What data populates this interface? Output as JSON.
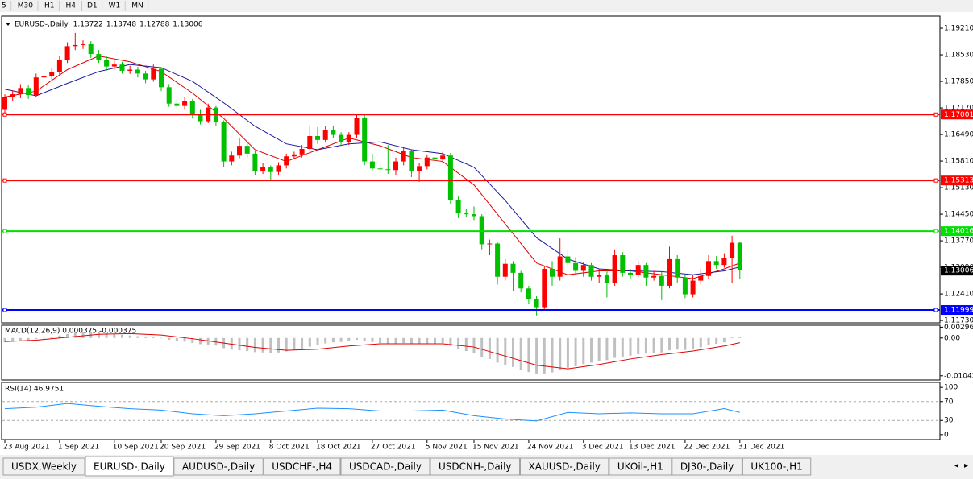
{
  "toolbar": {
    "timeframes": [
      "5",
      "M30",
      "H1",
      "H4",
      "D1",
      "W1",
      "MN"
    ]
  },
  "chart_data": [
    {
      "type": "candlestick",
      "title": "EURUSD-,Daily",
      "header_values": [
        1.13722,
        1.13748,
        1.12788,
        1.13006
      ],
      "categories": [
        "23 Aug 2021",
        null,
        null,
        null,
        null,
        null,
        null,
        "1 Sep 2021",
        null,
        null,
        null,
        null,
        null,
        null,
        "10 Sep 2021",
        null,
        null,
        null,
        null,
        null,
        "20 Sep 2021",
        null,
        null,
        null,
        null,
        null,
        null,
        "29 Sep 2021",
        null,
        null,
        null,
        null,
        null,
        null,
        "8 Oct 2021",
        null,
        null,
        null,
        null,
        null,
        "18 Oct 2021",
        null,
        null,
        null,
        null,
        null,
        null,
        "27 Oct 2021",
        null,
        null,
        null,
        null,
        null,
        null,
        "5 Nov 2021",
        null,
        null,
        null,
        null,
        null,
        "15 Nov 2021",
        null,
        null,
        null,
        null,
        null,
        null,
        "24 Nov 2021",
        null,
        null,
        null,
        null,
        null,
        null,
        "3 Dec 2021",
        null,
        null,
        null,
        null,
        null,
        "13 Dec 2021",
        null,
        null,
        null,
        null,
        null,
        null,
        "22 Dec 2021",
        null,
        null,
        null,
        null,
        null,
        null,
        "31 Dec 2021",
        null,
        null
      ],
      "candles": [
        [
          1.1712,
          1.1752,
          1.17,
          1.1745
        ],
        [
          1.1745,
          1.1762,
          1.1735,
          1.1752
        ],
        [
          1.1752,
          1.1778,
          1.1742,
          1.1768
        ],
        [
          1.1768,
          1.1775,
          1.174,
          1.175
        ],
        [
          1.175,
          1.1805,
          1.1745,
          1.1795
        ],
        [
          1.1795,
          1.1808,
          1.1785,
          1.1798
        ],
        [
          1.1798,
          1.182,
          1.179,
          1.1808
        ],
        [
          1.1808,
          1.185,
          1.18,
          1.184
        ],
        [
          1.184,
          1.1885,
          1.1832,
          1.1875
        ],
        [
          1.1875,
          1.1909,
          1.1865,
          1.1878
        ],
        [
          1.1878,
          1.189,
          1.1868,
          1.188
        ],
        [
          1.188,
          1.1888,
          1.1845,
          1.1855
        ],
        [
          1.1855,
          1.1865,
          1.1832,
          1.184
        ],
        [
          1.184,
          1.185,
          1.1812,
          1.1823
        ],
        [
          1.1823,
          1.1838,
          1.1815,
          1.1828
        ],
        [
          1.1828,
          1.1835,
          1.1805,
          1.1812
        ],
        [
          1.1812,
          1.1825,
          1.1804,
          1.1815
        ],
        [
          1.1815,
          1.1822,
          1.1795,
          1.1805
        ],
        [
          1.1805,
          1.1812,
          1.178,
          1.179
        ],
        [
          1.179,
          1.1828,
          1.1784,
          1.1817
        ],
        [
          1.1817,
          1.1822,
          1.176,
          1.177
        ],
        [
          1.177,
          1.1778,
          1.172,
          1.1728
        ],
        [
          1.1728,
          1.174,
          1.1715,
          1.1722
        ],
        [
          1.1722,
          1.1745,
          1.1712,
          1.1735
        ],
        [
          1.1735,
          1.174,
          1.169,
          1.17
        ],
        [
          1.17,
          1.1712,
          1.1675,
          1.1683
        ],
        [
          1.1683,
          1.1728,
          1.1678,
          1.1718
        ],
        [
          1.1718,
          1.1722,
          1.1672,
          1.168
        ],
        [
          1.168,
          1.1685,
          1.1565,
          1.158
        ],
        [
          1.158,
          1.1605,
          1.157,
          1.1595
        ],
        [
          1.1595,
          1.164,
          1.1588,
          1.162
        ],
        [
          1.162,
          1.1628,
          1.159,
          1.16
        ],
        [
          1.16,
          1.1608,
          1.1545,
          1.1555
        ],
        [
          1.1555,
          1.1575,
          1.1548,
          1.1565
        ],
        [
          1.1565,
          1.157,
          1.153,
          1.1553
        ],
        [
          1.1553,
          1.1578,
          1.1545,
          1.157
        ],
        [
          1.157,
          1.16,
          1.1562,
          1.1593
        ],
        [
          1.1593,
          1.1605,
          1.1585,
          1.1598
        ],
        [
          1.1598,
          1.1622,
          1.159,
          1.1612
        ],
        [
          1.1612,
          1.1672,
          1.1605,
          1.1645
        ],
        [
          1.1645,
          1.1668,
          1.1625,
          1.1635
        ],
        [
          1.1635,
          1.167,
          1.1628,
          1.166
        ],
        [
          1.166,
          1.1672,
          1.164,
          1.1648
        ],
        [
          1.1648,
          1.1655,
          1.162,
          1.163
        ],
        [
          1.163,
          1.1655,
          1.1622,
          1.1648
        ],
        [
          1.1648,
          1.1702,
          1.164,
          1.1692
        ],
        [
          1.1692,
          1.17,
          1.157,
          1.158
        ],
        [
          1.158,
          1.16,
          1.1555,
          1.1562
        ],
        [
          1.1562,
          1.1575,
          1.155,
          1.156
        ],
        [
          1.156,
          1.1622,
          1.1548,
          1.1558
        ],
        [
          1.1558,
          1.159,
          1.1545,
          1.158
        ],
        [
          1.158,
          1.1615,
          1.157,
          1.1607
        ],
        [
          1.1607,
          1.1612,
          1.154,
          1.1555
        ],
        [
          1.1555,
          1.1575,
          1.1528,
          1.1568
        ],
        [
          1.1568,
          1.1598,
          1.156,
          1.159
        ],
        [
          1.159,
          1.1598,
          1.1575,
          1.1585
        ],
        [
          1.1585,
          1.1605,
          1.1575,
          1.1595
        ],
        [
          1.1595,
          1.1602,
          1.147,
          1.1482
        ],
        [
          1.1482,
          1.149,
          1.1435,
          1.1447
        ],
        [
          1.1447,
          1.1458,
          1.1438,
          1.1445
        ],
        [
          1.1445,
          1.1465,
          1.143,
          1.144
        ],
        [
          1.144,
          1.1445,
          1.1355,
          1.1368
        ],
        [
          1.1368,
          1.138,
          1.134,
          1.137
        ],
        [
          1.137,
          1.1375,
          1.1265,
          1.1285
        ],
        [
          1.1285,
          1.133,
          1.1275,
          1.1318
        ],
        [
          1.1318,
          1.1325,
          1.1248,
          1.1295
        ],
        [
          1.1295,
          1.13,
          1.1245,
          1.1255
        ],
        [
          1.1255,
          1.1262,
          1.1215,
          1.1227
        ],
        [
          1.1227,
          1.1235,
          1.1186,
          1.1207
        ],
        [
          1.1207,
          1.1312,
          1.12,
          1.1305
        ],
        [
          1.1305,
          1.1325,
          1.1262,
          1.1285
        ],
        [
          1.1285,
          1.1383,
          1.1275,
          1.1337
        ],
        [
          1.1337,
          1.1352,
          1.131,
          1.132
        ],
        [
          1.132,
          1.1335,
          1.129,
          1.13
        ],
        [
          1.13,
          1.1322,
          1.1285,
          1.1315
        ],
        [
          1.1315,
          1.132,
          1.1275,
          1.1285
        ],
        [
          1.1285,
          1.1305,
          1.127,
          1.129
        ],
        [
          1.129,
          1.13,
          1.1232,
          1.127
        ],
        [
          1.127,
          1.1355,
          1.1262,
          1.134
        ],
        [
          1.134,
          1.1348,
          1.1285,
          1.1295
        ],
        [
          1.1295,
          1.1305,
          1.128,
          1.129
        ],
        [
          1.129,
          1.1325,
          1.1283,
          1.1315
        ],
        [
          1.1315,
          1.132,
          1.1262,
          1.1283
        ],
        [
          1.1283,
          1.13,
          1.1275,
          1.1287
        ],
        [
          1.1287,
          1.1298,
          1.1225,
          1.1262
        ],
        [
          1.1262,
          1.1362,
          1.1255,
          1.133
        ],
        [
          1.133,
          1.134,
          1.127,
          1.1283
        ],
        [
          1.1283,
          1.129,
          1.123,
          1.124
        ],
        [
          1.124,
          1.129,
          1.1232,
          1.1275
        ],
        [
          1.1275,
          1.1305,
          1.1265,
          1.1287
        ],
        [
          1.1287,
          1.134,
          1.128,
          1.1325
        ],
        [
          1.1325,
          1.1338,
          1.1305,
          1.1315
        ],
        [
          1.1315,
          1.1345,
          1.1308,
          1.1332
        ],
        [
          1.1332,
          1.139,
          1.127,
          1.1372
        ],
        [
          1.1372,
          1.1375,
          1.1279,
          1.1301
        ]
      ],
      "bull_color": "#ff0000",
      "bear_color": "#00c000",
      "series": [
        {
          "color": "#e00000",
          "x": [
            0,
            4,
            8,
            12,
            16,
            20,
            24,
            28,
            32,
            36,
            40,
            44,
            48,
            52,
            56,
            60,
            64,
            68,
            72,
            76,
            80,
            84,
            88,
            92,
            94
          ],
          "values": [
            1.1745,
            1.176,
            1.1815,
            1.185,
            1.1835,
            1.181,
            1.1755,
            1.169,
            1.161,
            1.158,
            1.161,
            1.164,
            1.162,
            1.159,
            1.158,
            1.152,
            1.142,
            1.132,
            1.129,
            1.13,
            1.13,
            1.129,
            1.128,
            1.1305,
            1.132
          ]
        },
        {
          "color": "#1a1aa0",
          "x": [
            0,
            4,
            8,
            12,
            16,
            20,
            24,
            28,
            32,
            36,
            40,
            44,
            48,
            52,
            56,
            60,
            64,
            68,
            72,
            76,
            80,
            84,
            88,
            92,
            94
          ],
          "values": [
            1.1765,
            1.1748,
            1.178,
            1.181,
            1.1828,
            1.182,
            1.1785,
            1.173,
            1.167,
            1.1625,
            1.161,
            1.1625,
            1.163,
            1.161,
            1.16,
            1.1565,
            1.148,
            1.1385,
            1.133,
            1.1305,
            1.13,
            1.1298,
            1.129,
            1.13,
            1.131
          ]
        }
      ],
      "hlines": [
        {
          "value": 1.17001,
          "color": "#ff0000"
        },
        {
          "value": 1.15313,
          "color": "#ff0000"
        },
        {
          "value": 1.14016,
          "color": "#00e000"
        },
        {
          "value": 1.11999,
          "color": "#0000ff"
        }
      ],
      "current_price": 1.13006,
      "ylim": [
        1.1167,
        1.1952
      ],
      "yticks": [
        {
          "value": 1.1921,
          "label": "1.19210"
        },
        {
          "value": 1.1853,
          "label": "1.18530"
        },
        {
          "value": 1.1785,
          "label": "1.17850"
        },
        {
          "value": 1.1717,
          "label": "1.17170"
        },
        {
          "value": 1.1649,
          "label": "1.16490"
        },
        {
          "value": 1.1581,
          "label": "1.15810"
        },
        {
          "value": 1.1513,
          "label": "1.15130"
        },
        {
          "value": 1.1445,
          "label": "1.14450"
        },
        {
          "value": 1.1377,
          "label": "1.13770"
        },
        {
          "value": 1.1309,
          "label": "1.13090"
        },
        {
          "value": 1.1241,
          "label": "1.12410"
        },
        {
          "value": 1.1173,
          "label": "1.11730"
        }
      ]
    },
    {
      "type": "macd",
      "title": "MACD(12,26,9) 0.000375 -0.000375",
      "color": "#c0c0c0",
      "values": [
        -0.0012,
        -0.001,
        -0.0008,
        -0.0006,
        -0.0003,
        0.0,
        0.0003,
        0.0007,
        0.0011,
        0.0014,
        0.0016,
        0.0016,
        0.0015,
        0.0013,
        0.0011,
        0.0009,
        0.0007,
        0.0005,
        0.0003,
        0.0002,
        -0.0001,
        -0.0005,
        -0.0008,
        -0.001,
        -0.0014,
        -0.0017,
        -0.0018,
        -0.0021,
        -0.0028,
        -0.0032,
        -0.0034,
        -0.0036,
        -0.0039,
        -0.004,
        -0.0041,
        -0.004,
        -0.0037,
        -0.0034,
        -0.003,
        -0.0024,
        -0.002,
        -0.0015,
        -0.0012,
        -0.0011,
        -0.0009,
        -0.0005,
        -0.0008,
        -0.0011,
        -0.0014,
        -0.0016,
        -0.0016,
        -0.0014,
        -0.0016,
        -0.0017,
        -0.0016,
        -0.0015,
        -0.0014,
        -0.0022,
        -0.003,
        -0.0036,
        -0.0042,
        -0.0052,
        -0.0058,
        -0.0068,
        -0.0074,
        -0.008,
        -0.0087,
        -0.0094,
        -0.01,
        -0.0098,
        -0.0095,
        -0.0088,
        -0.0082,
        -0.0078,
        -0.0072,
        -0.0068,
        -0.0064,
        -0.0061,
        -0.0055,
        -0.0052,
        -0.0049,
        -0.0045,
        -0.0043,
        -0.0041,
        -0.004,
        -0.0034,
        -0.0032,
        -0.0033,
        -0.003,
        -0.0026,
        -0.002,
        -0.0016,
        -0.0012,
        0.0003,
        0.0004
      ],
      "series": [
        {
          "color": "#e00000",
          "x": [
            0,
            4,
            8,
            12,
            16,
            20,
            24,
            28,
            32,
            36,
            40,
            44,
            48,
            52,
            56,
            60,
            64,
            68,
            72,
            76,
            80,
            84,
            88,
            92,
            94
          ],
          "values": [
            -0.001,
            -0.0006,
            0.0002,
            0.001,
            0.0012,
            0.0008,
            -0.0002,
            -0.0014,
            -0.0026,
            -0.0034,
            -0.0031,
            -0.0022,
            -0.0016,
            -0.0016,
            -0.0016,
            -0.0025,
            -0.005,
            -0.0075,
            -0.0085,
            -0.0073,
            -0.0058,
            -0.0046,
            -0.0036,
            -0.0022,
            -0.0013
          ]
        }
      ],
      "ylim": [
        -0.01158,
        0.0035
      ],
      "yticks": [
        0.002966,
        {
          "value": 0,
          "label": "0.00"
        },
        -0.010425
      ]
    },
    {
      "type": "line",
      "title": "RSI(14) 46.9751",
      "series": [
        {
          "color": "#1e90ff",
          "x": [
            0,
            4,
            8,
            12,
            16,
            20,
            24,
            28,
            32,
            36,
            40,
            44,
            48,
            52,
            56,
            60,
            64,
            68,
            72,
            76,
            80,
            84,
            88,
            92,
            94
          ],
          "values": [
            55,
            58,
            66,
            60,
            55,
            52,
            44,
            40,
            44,
            50,
            56,
            55,
            50,
            50,
            52,
            40,
            33,
            29,
            47,
            44,
            46,
            44,
            44,
            55,
            47
          ]
        }
      ],
      "levels": [
        70,
        30
      ],
      "ylim": [
        -10.5,
        110.5
      ],
      "yticks": [
        100,
        70,
        30,
        0
      ]
    }
  ],
  "tabs": [
    "USDX,Weekly",
    "EURUSD-,Daily",
    "AUDUSD-,Daily",
    "USDCHF-,H4",
    "USDCAD-,Daily",
    "USDCNH-,Daily",
    "XAUUSD-,Daily",
    "UKOil-,H1",
    "DJ30-,Daily",
    "UK100-,H1"
  ],
  "active_tab": "EURUSD-,Daily"
}
